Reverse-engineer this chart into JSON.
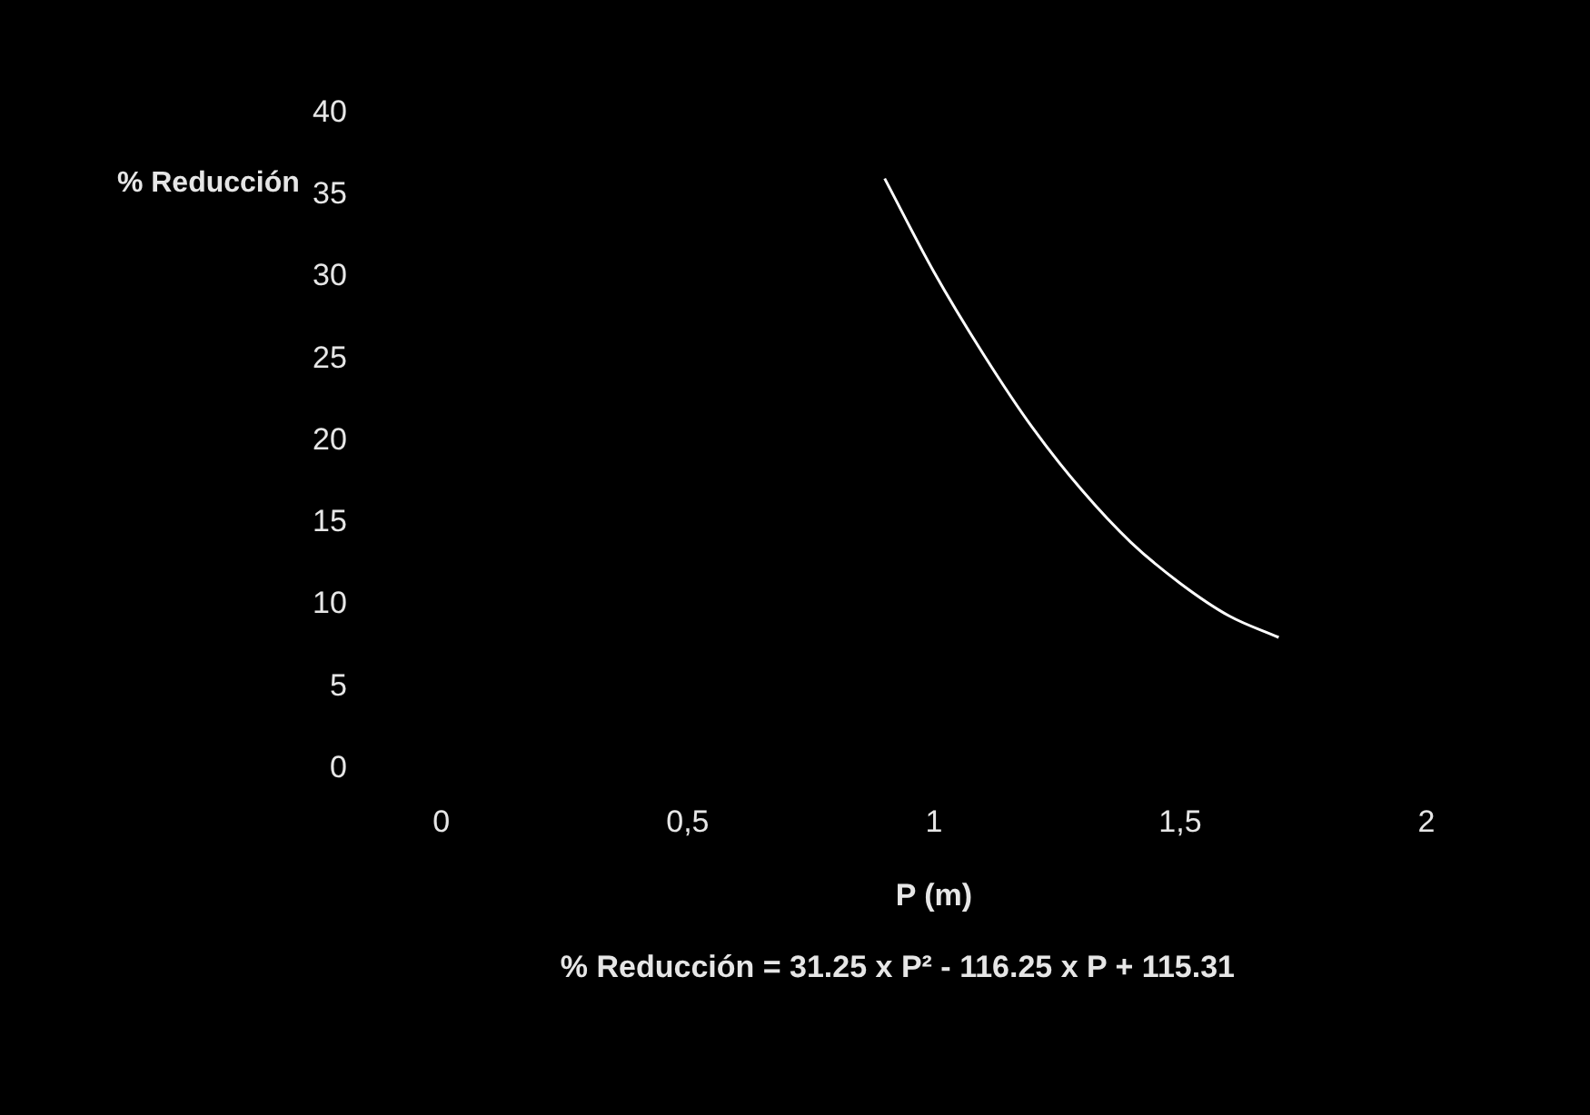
{
  "chart_data": {
    "type": "line",
    "xlabel": "P (m)",
    "ylabel": "% Reducción",
    "x": [
      0.9,
      1.0,
      1.1,
      1.2,
      1.3,
      1.4,
      1.5,
      1.6,
      1.7
    ],
    "series": [
      {
        "color": "#ffffff",
        "values": [
          36,
          30.3,
          25.3,
          20.8,
          17,
          13.8,
          11.3,
          9.3,
          8
        ]
      }
    ],
    "xlim": [
      0,
      2
    ],
    "xticks": [
      0,
      {
        "value": 0.5,
        "label": "0,5"
      },
      1,
      {
        "value": 1.5,
        "label": "1,5"
      },
      2
    ],
    "ylim": [
      0,
      40
    ],
    "yticks": [
      0,
      5,
      10,
      15,
      20,
      25,
      30,
      35,
      40
    ],
    "grid": false,
    "legend": false,
    "marker": "none",
    "line_style": "solid",
    "annotations": [
      "% Reducción = 31.25 x P² - 116.25 x P + 115.31"
    ]
  }
}
